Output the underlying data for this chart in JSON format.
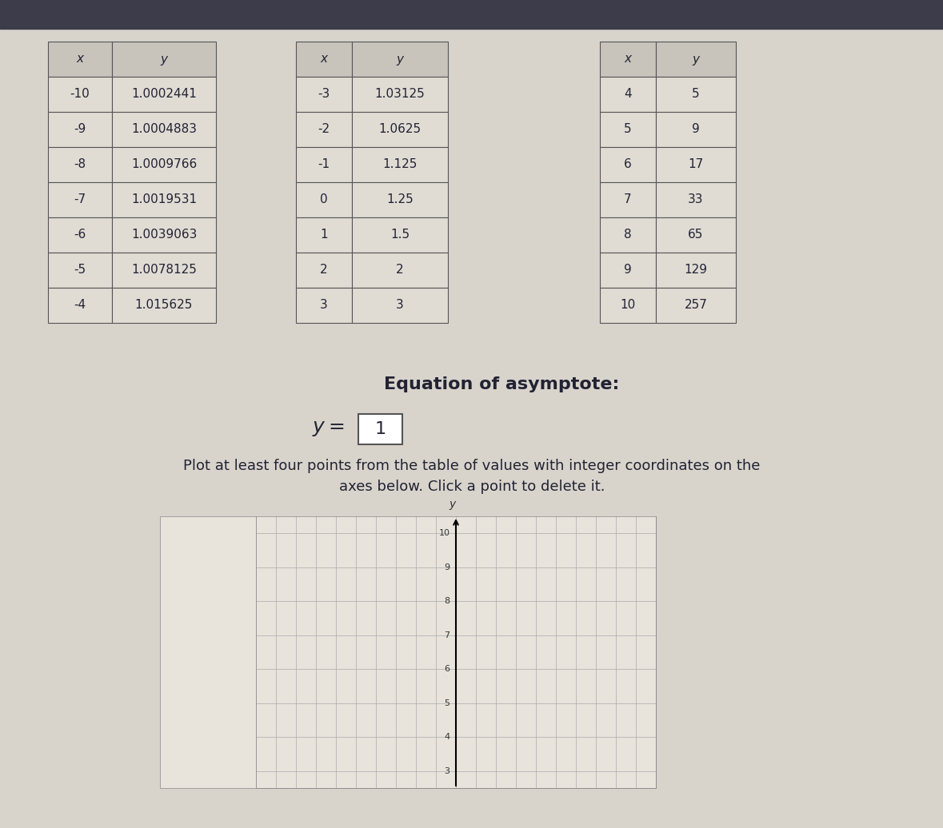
{
  "background_color": "#b8b0a0",
  "screen_bg": "#d8d4cc",
  "table1": {
    "x_vals": [
      -10,
      -9,
      -8,
      -7,
      -6,
      -5,
      -4
    ],
    "y_vals": [
      "1.0002441",
      "1.0004883",
      "1.0009766",
      "1.0019531",
      "1.0039063",
      "1.0078125",
      "1.015625"
    ]
  },
  "table2": {
    "x_vals": [
      -3,
      -2,
      -1,
      0,
      1,
      2,
      3
    ],
    "y_vals": [
      "1.03125",
      "1.0625",
      "1.125",
      "1.25",
      "1.5",
      "2",
      "3"
    ]
  },
  "table3": {
    "x_vals": [
      4,
      5,
      6,
      7,
      8,
      9,
      10
    ],
    "y_vals": [
      "5",
      "9",
      "17",
      "33",
      "65",
      "129",
      "257"
    ]
  },
  "asymptote_label": "Equation of asymptote:",
  "asymptote_eq": "y = 1",
  "instruction": "Plot at least four points from the table of values with integer coordinates on the\naxes below. Click a point to delete it.",
  "graph_yticks": [
    3,
    4,
    5,
    6,
    7,
    8,
    9,
    10
  ],
  "graph_ylabel": "y",
  "col_header": [
    "x",
    "y"
  ],
  "table_bg": "#e8e4dc",
  "header_bg": "#c8c4bc",
  "dark_bar": "#3c3c4a"
}
